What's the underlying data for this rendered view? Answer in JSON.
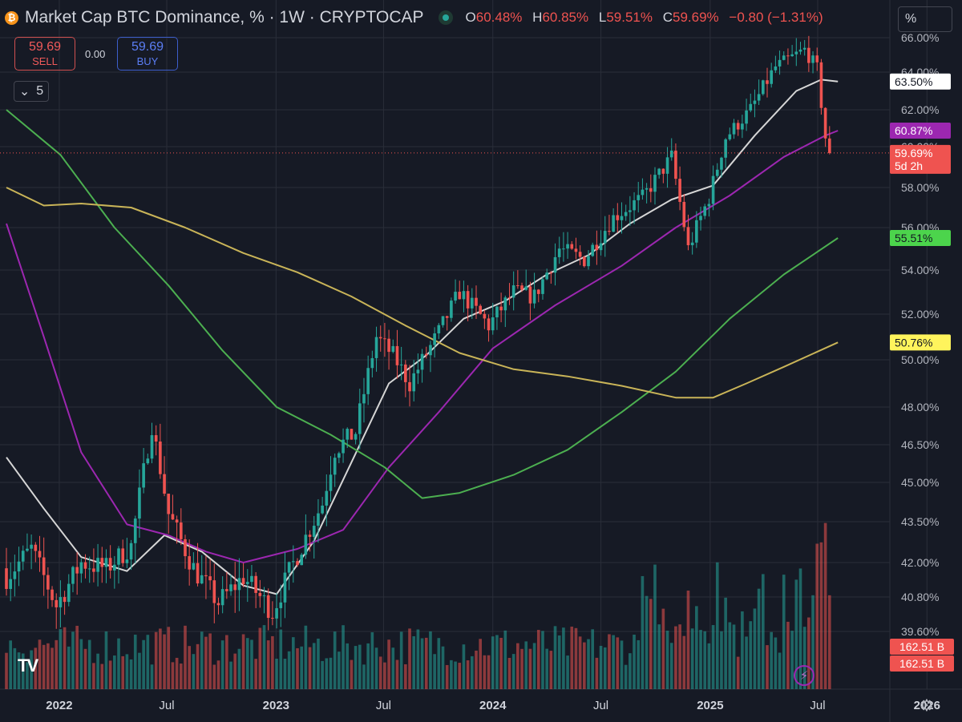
{
  "header": {
    "coin_glyph": "₿",
    "title": "Market Cap BTC Dominance, % · 1W · CRYPTOCAP",
    "ohlc": [
      {
        "key": "O",
        "value": "60.48%"
      },
      {
        "key": "H",
        "value": "60.85%"
      },
      {
        "key": "L",
        "value": "59.51%"
      },
      {
        "key": "C",
        "value": "59.69%"
      }
    ],
    "change": "−0.80 (−1.31%)",
    "scale_mode": "%"
  },
  "trade": {
    "sell_price": "59.69",
    "sell_label": "SELL",
    "spread": "0.00",
    "buy_price": "59.69",
    "buy_label": "BUY"
  },
  "indicators_toggle": {
    "count": "5",
    "icon": "chevron-down-icon"
  },
  "logo": {
    "text": "TV"
  },
  "colors": {
    "background": "#161a25",
    "grid": "#2a2e39",
    "up": "#26a69a",
    "down": "#ef5350",
    "ma_white": "#d6d6d6",
    "ma_purple": "#9c27b0",
    "ma_green": "#4caf50",
    "ma_yellow": "#c9b458"
  },
  "chart_data": {
    "type": "candlestick",
    "y_ticks": [
      "66.00%",
      "64.00%",
      "62.00%",
      "60.00%",
      "58.00%",
      "56.00%",
      "54.00%",
      "52.00%",
      "50.00%",
      "48.00%",
      "46.50%",
      "45.00%",
      "43.50%",
      "42.00%",
      "40.80%",
      "39.60%"
    ],
    "x_ticks": [
      "2022",
      "Jul",
      "2023",
      "Jul",
      "2024",
      "Jul",
      "2025",
      "Jul",
      "2026"
    ],
    "ylim": [
      39.0,
      66.5
    ],
    "price_labels": [
      {
        "text": "63.50%",
        "value": 63.5,
        "bg": "#ffffff",
        "fg": "#131722"
      },
      {
        "text": "60.87%",
        "value": 60.87,
        "bg": "#9c27b0",
        "fg": "#ffffff"
      },
      {
        "text": "59.69%",
        "sub": "5d 2h",
        "value": 59.69,
        "bg": "#ef5350",
        "fg": "#ffffff"
      },
      {
        "text": "55.51%",
        "value": 55.51,
        "bg": "#4cd44c",
        "fg": "#131722"
      },
      {
        "text": "50.76%",
        "value": 50.76,
        "bg": "#fff45c",
        "fg": "#131722"
      }
    ],
    "volume_labels": [
      "162.51 B",
      "162.51 B"
    ],
    "close_anchors": [
      [
        "2021-10-04",
        41.5
      ],
      [
        "2021-11-15",
        42.5
      ],
      [
        "2021-12-27",
        40.5
      ],
      [
        "2022-02-07",
        42.0
      ],
      [
        "2022-03-21",
        41.8
      ],
      [
        "2022-05-02",
        42.6
      ],
      [
        "2022-06-06",
        47.3
      ],
      [
        "2022-07-04",
        43.8
      ],
      [
        "2022-08-15",
        41.8
      ],
      [
        "2022-09-26",
        40.6
      ],
      [
        "2022-11-07",
        41.5
      ],
      [
        "2022-12-26",
        40.3
      ],
      [
        "2023-02-06",
        42.3
      ],
      [
        "2023-03-20",
        44.2
      ],
      [
        "2023-04-10",
        46.3
      ],
      [
        "2023-05-15",
        47.0
      ],
      [
        "2023-06-19",
        51.0
      ],
      [
        "2023-07-17",
        50.2
      ],
      [
        "2023-08-14",
        49.0
      ],
      [
        "2023-10-02",
        51.2
      ],
      [
        "2023-11-06",
        53.0
      ],
      [
        "2023-12-25",
        51.5
      ],
      [
        "2024-02-05",
        53.0
      ],
      [
        "2024-03-11",
        52.8
      ],
      [
        "2024-04-22",
        55.0
      ],
      [
        "2024-06-03",
        54.5
      ],
      [
        "2024-07-22",
        56.5
      ],
      [
        "2024-09-09",
        57.5
      ],
      [
        "2024-10-28",
        59.5
      ],
      [
        "2024-11-25",
        55.0
      ],
      [
        "2024-12-30",
        57.5
      ],
      [
        "2025-01-27",
        60.5
      ],
      [
        "2025-03-10",
        62.0
      ],
      [
        "2025-04-21",
        64.3
      ],
      [
        "2025-06-09",
        65.3
      ],
      [
        "2025-06-30",
        64.2
      ],
      [
        "2025-07-14",
        60.5
      ],
      [
        "2025-07-21",
        59.69
      ]
    ],
    "moving_averages": [
      {
        "color": "#d6d6d6",
        "points": [
          [
            "2021-10-04",
            46.0
          ],
          [
            "2021-12-06",
            44.0
          ],
          [
            "2022-02-07",
            42.2
          ],
          [
            "2022-04-25",
            41.7
          ],
          [
            "2022-06-27",
            43.0
          ],
          [
            "2022-08-29",
            42.4
          ],
          [
            "2022-11-07",
            41.2
          ],
          [
            "2023-01-02",
            40.9
          ],
          [
            "2023-03-06",
            42.8
          ],
          [
            "2023-05-08",
            45.8
          ],
          [
            "2023-07-10",
            49.0
          ],
          [
            "2023-09-11",
            50.2
          ],
          [
            "2023-11-13",
            51.8
          ],
          [
            "2024-01-22",
            52.6
          ],
          [
            "2024-04-01",
            53.8
          ],
          [
            "2024-06-10",
            54.7
          ],
          [
            "2024-08-19",
            56.2
          ],
          [
            "2024-10-28",
            57.4
          ],
          [
            "2025-01-06",
            58.1
          ],
          [
            "2025-03-17",
            60.6
          ],
          [
            "2025-05-26",
            63.0
          ],
          [
            "2025-07-07",
            63.6
          ],
          [
            "2025-08-04",
            63.5
          ]
        ]
      },
      {
        "color": "#9c27b0",
        "points": [
          [
            "2021-10-04",
            56.2
          ],
          [
            "2021-12-06",
            51.0
          ],
          [
            "2022-02-07",
            46.2
          ],
          [
            "2022-04-25",
            43.4
          ],
          [
            "2022-07-04",
            43.0
          ],
          [
            "2022-09-05",
            42.4
          ],
          [
            "2022-11-07",
            42.0
          ],
          [
            "2023-02-06",
            42.5
          ],
          [
            "2023-04-24",
            43.2
          ],
          [
            "2023-07-10",
            45.6
          ],
          [
            "2023-10-02",
            47.8
          ],
          [
            "2024-01-01",
            50.5
          ],
          [
            "2024-04-15",
            52.4
          ],
          [
            "2024-08-05",
            54.2
          ],
          [
            "2024-11-04",
            56.0
          ],
          [
            "2025-02-03",
            57.6
          ],
          [
            "2025-05-05",
            59.5
          ],
          [
            "2025-07-14",
            60.6
          ],
          [
            "2025-08-04",
            60.87
          ]
        ]
      },
      {
        "color": "#4caf50",
        "points": [
          [
            "2021-10-04",
            62.0
          ],
          [
            "2022-01-03",
            59.6
          ],
          [
            "2022-04-04",
            56.0
          ],
          [
            "2022-07-04",
            53.3
          ],
          [
            "2022-10-03",
            50.4
          ],
          [
            "2023-01-02",
            48.0
          ],
          [
            "2023-04-03",
            46.9
          ],
          [
            "2023-07-03",
            45.6
          ],
          [
            "2023-09-04",
            44.4
          ],
          [
            "2023-11-06",
            44.6
          ],
          [
            "2024-02-05",
            45.3
          ],
          [
            "2024-05-06",
            46.3
          ],
          [
            "2024-08-05",
            47.8
          ],
          [
            "2024-11-04",
            49.5
          ],
          [
            "2025-02-03",
            51.8
          ],
          [
            "2025-05-05",
            53.8
          ],
          [
            "2025-08-04",
            55.51
          ]
        ]
      },
      {
        "color": "#c9b458",
        "points": [
          [
            "2021-10-04",
            58.0
          ],
          [
            "2021-12-06",
            57.1
          ],
          [
            "2022-02-07",
            57.2
          ],
          [
            "2022-05-02",
            57.0
          ],
          [
            "2022-08-01",
            56.0
          ],
          [
            "2022-11-07",
            54.8
          ],
          [
            "2023-02-06",
            53.9
          ],
          [
            "2023-05-08",
            52.8
          ],
          [
            "2023-08-07",
            51.5
          ],
          [
            "2023-11-06",
            50.3
          ],
          [
            "2024-02-05",
            49.6
          ],
          [
            "2024-05-06",
            49.3
          ],
          [
            "2024-08-05",
            48.9
          ],
          [
            "2024-11-04",
            48.4
          ],
          [
            "2025-01-06",
            48.4
          ],
          [
            "2025-03-03",
            49.0
          ],
          [
            "2025-05-05",
            49.7
          ],
          [
            "2025-08-04",
            50.76
          ]
        ]
      }
    ]
  }
}
